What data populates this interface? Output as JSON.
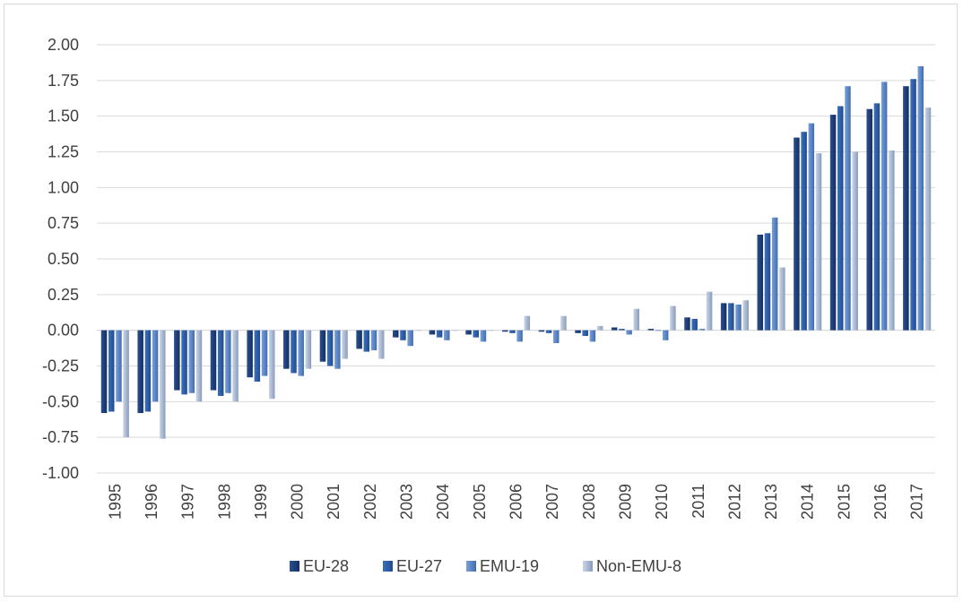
{
  "chart_data": {
    "type": "bar",
    "title": "",
    "xlabel": "",
    "ylabel": "",
    "ylim": [
      -1.0,
      2.0
    ],
    "yticks": [
      "2.00",
      "1.75",
      "1.50",
      "1.25",
      "1.00",
      "0.75",
      "0.50",
      "0.25",
      "0.00",
      "-0.25",
      "-0.50",
      "-0.75",
      "-1.00"
    ],
    "grid": true,
    "legend_position": "bottom",
    "categories": [
      "1995",
      "1996",
      "1997",
      "1998",
      "1999",
      "2000",
      "2001",
      "2002",
      "2003",
      "2004",
      "2005",
      "2006",
      "2007",
      "2008",
      "2009",
      "2010",
      "2011",
      "2012",
      "2013",
      "2014",
      "2015",
      "2016",
      "2017"
    ],
    "series": [
      {
        "name": "EU-28",
        "color": "#1f3f7a",
        "values": [
          -0.58,
          -0.58,
          -0.42,
          -0.42,
          -0.33,
          -0.27,
          -0.22,
          -0.13,
          -0.05,
          -0.03,
          -0.03,
          -0.01,
          -0.01,
          -0.02,
          0.02,
          0.01,
          0.09,
          0.19,
          0.67,
          1.35,
          1.51,
          1.55,
          1.71
        ]
      },
      {
        "name": "EU-27",
        "color": "#2e5fa8",
        "values": [
          -0.57,
          -0.57,
          -0.45,
          -0.46,
          -0.36,
          -0.3,
          -0.25,
          -0.15,
          -0.07,
          -0.05,
          -0.05,
          -0.02,
          -0.02,
          -0.04,
          0.01,
          0.0,
          0.08,
          0.19,
          0.68,
          1.39,
          1.57,
          1.59,
          1.76
        ]
      },
      {
        "name": "EMU-19",
        "color": "#5b86c8",
        "values": [
          -0.5,
          -0.5,
          -0.44,
          -0.44,
          -0.32,
          -0.32,
          -0.27,
          -0.14,
          -0.11,
          -0.07,
          -0.08,
          -0.08,
          -0.09,
          -0.08,
          -0.03,
          -0.07,
          0.01,
          0.18,
          0.79,
          1.45,
          1.71,
          1.74,
          1.85
        ]
      },
      {
        "name": "Non-EMU-8",
        "color": "#aab9d3",
        "values": [
          -0.75,
          -0.76,
          -0.5,
          -0.5,
          -0.48,
          -0.27,
          -0.2,
          -0.2,
          0.0,
          0.0,
          0.0,
          0.1,
          0.1,
          0.03,
          0.15,
          0.17,
          0.27,
          0.21,
          0.44,
          1.24,
          1.25,
          1.26,
          1.56
        ]
      }
    ]
  }
}
